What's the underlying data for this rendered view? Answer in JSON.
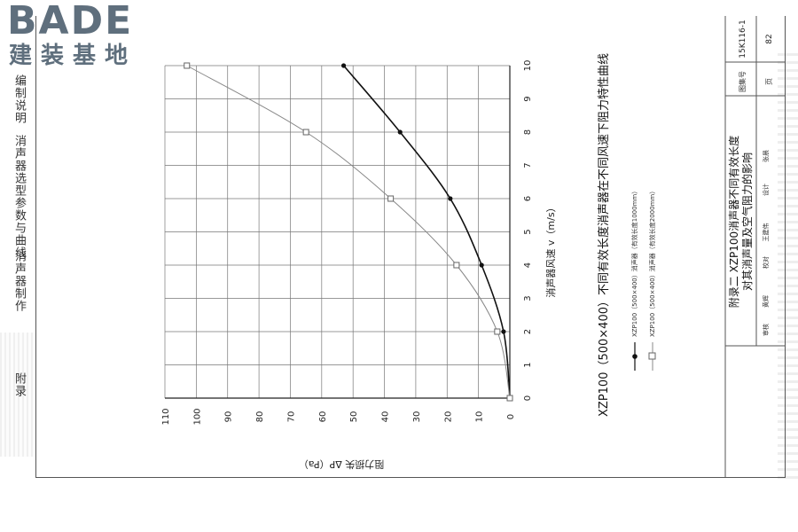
{
  "watermark": {
    "latin": "BADE",
    "cjk": "建装基地"
  },
  "left_nav": [
    "编制说明",
    "消声器选型参数与曲线",
    "消声器制作",
    "附录"
  ],
  "title_block": {
    "line1": "附录二 XZP100消声器不同有效长度",
    "line2": "对其消声量及空气阻力的影响",
    "atlas_no_label": "图集号",
    "atlas_no": "15K116-1",
    "page_label": "页",
    "page": "82",
    "review_label": "审核",
    "review_name": "黄辉",
    "check_label": "校对",
    "check_name": "王建伟",
    "design_label": "设计",
    "design_name": "张晨"
  },
  "colors": {
    "grid": "#777777",
    "series_dark": "#111111",
    "series_light": "#888888"
  },
  "chart_data": {
    "type": "line",
    "title": "XZP100（500×400）不同有效长度消声器在不同风速下阻力特性曲线",
    "xlabel": "消声器风速 v（m/s）",
    "ylabel": "阻力损失 ΔP（Pa）",
    "xlim": [
      0,
      10
    ],
    "ylim": [
      0,
      110
    ],
    "xticks": [
      "0",
      "1",
      "2",
      "3",
      "4",
      "5",
      "6",
      "7",
      "8",
      "9",
      "10"
    ],
    "yticks": [
      "0",
      "10",
      "20",
      "30",
      "40",
      "50",
      "60",
      "70",
      "80",
      "90",
      "100",
      "110"
    ],
    "grid": true,
    "legend_position": "bottom-left",
    "series": [
      {
        "name": "XZP100（500×400）消声器（有效长度1000mm）",
        "marker": "dot",
        "x": [
          0,
          2,
          4,
          6,
          8,
          10
        ],
        "y": [
          0,
          2,
          9,
          19,
          35,
          53
        ]
      },
      {
        "name": "XZP100（500×400）消声器（有效长度2000mm）",
        "marker": "square",
        "x": [
          0,
          2,
          4,
          6,
          8,
          10
        ],
        "y": [
          0,
          4,
          17,
          38,
          65,
          103
        ]
      }
    ]
  }
}
